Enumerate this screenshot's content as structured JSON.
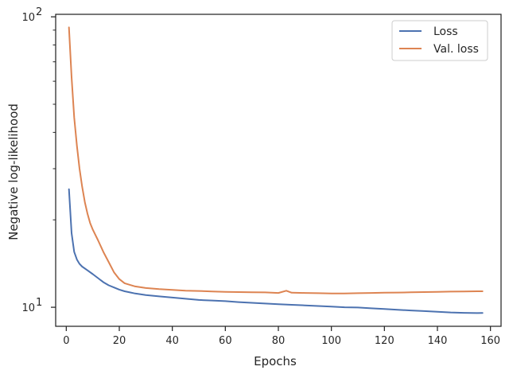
{
  "chart_data": {
    "type": "line",
    "xlabel": "Epochs",
    "ylabel": "Negative log-likelihood",
    "xlim": [
      -4,
      164
    ],
    "ylim": [
      8.6,
      102
    ],
    "yscale": "log",
    "x_ticks": [
      0,
      20,
      40,
      60,
      80,
      100,
      120,
      140,
      160
    ],
    "y_ticks": [
      {
        "value": 10,
        "label": "10",
        "exp": "1"
      },
      {
        "value": 100,
        "label": "10",
        "exp": "2"
      }
    ],
    "y_minor_ticks": [
      20,
      30,
      40,
      50,
      60,
      70,
      80,
      90
    ],
    "grid": false,
    "legend": "top-right",
    "series": [
      {
        "name": "Loss",
        "color": "#4c72b0",
        "points": [
          [
            1,
            25.5
          ],
          [
            2,
            18
          ],
          [
            3,
            15.5
          ],
          [
            4,
            14.6
          ],
          [
            5,
            14.1
          ],
          [
            6,
            13.8
          ],
          [
            8,
            13.4
          ],
          [
            10,
            13
          ],
          [
            12,
            12.6
          ],
          [
            14,
            12.2
          ],
          [
            16,
            11.9
          ],
          [
            18,
            11.7
          ],
          [
            20,
            11.5
          ],
          [
            22,
            11.35
          ],
          [
            24,
            11.25
          ],
          [
            26,
            11.15
          ],
          [
            28,
            11.08
          ],
          [
            30,
            11.02
          ],
          [
            35,
            10.9
          ],
          [
            40,
            10.8
          ],
          [
            45,
            10.7
          ],
          [
            50,
            10.6
          ],
          [
            55,
            10.55
          ],
          [
            60,
            10.5
          ],
          [
            65,
            10.42
          ],
          [
            70,
            10.36
          ],
          [
            75,
            10.3
          ],
          [
            80,
            10.25
          ],
          [
            85,
            10.2
          ],
          [
            90,
            10.15
          ],
          [
            95,
            10.1
          ],
          [
            100,
            10.05
          ],
          [
            105,
            10
          ],
          [
            110,
            9.98
          ],
          [
            115,
            9.92
          ],
          [
            120,
            9.86
          ],
          [
            125,
            9.8
          ],
          [
            130,
            9.75
          ],
          [
            135,
            9.7
          ],
          [
            140,
            9.65
          ],
          [
            145,
            9.6
          ],
          [
            150,
            9.57
          ],
          [
            155,
            9.55
          ],
          [
            157,
            9.56
          ]
        ]
      },
      {
        "name": "Val. loss",
        "color": "#dd8452",
        "points": [
          [
            1,
            92
          ],
          [
            2,
            62
          ],
          [
            3,
            45
          ],
          [
            4,
            36
          ],
          [
            5,
            30
          ],
          [
            6,
            26
          ],
          [
            7,
            23
          ],
          [
            8,
            21
          ],
          [
            9,
            19.5
          ],
          [
            10,
            18.5
          ],
          [
            12,
            17
          ],
          [
            14,
            15.5
          ],
          [
            16,
            14.3
          ],
          [
            18,
            13.2
          ],
          [
            20,
            12.5
          ],
          [
            22,
            12.1
          ],
          [
            24,
            11.95
          ],
          [
            26,
            11.8
          ],
          [
            28,
            11.72
          ],
          [
            30,
            11.65
          ],
          [
            35,
            11.55
          ],
          [
            40,
            11.48
          ],
          [
            45,
            11.4
          ],
          [
            50,
            11.38
          ],
          [
            55,
            11.33
          ],
          [
            60,
            11.3
          ],
          [
            65,
            11.28
          ],
          [
            70,
            11.26
          ],
          [
            75,
            11.25
          ],
          [
            80,
            11.2
          ],
          [
            83,
            11.4
          ],
          [
            85,
            11.22
          ],
          [
            90,
            11.2
          ],
          [
            95,
            11.18
          ],
          [
            100,
            11.15
          ],
          [
            105,
            11.15
          ],
          [
            110,
            11.18
          ],
          [
            115,
            11.2
          ],
          [
            120,
            11.22
          ],
          [
            125,
            11.24
          ],
          [
            130,
            11.26
          ],
          [
            135,
            11.28
          ],
          [
            140,
            11.3
          ],
          [
            145,
            11.32
          ],
          [
            150,
            11.33
          ],
          [
            155,
            11.35
          ],
          [
            157,
            11.35
          ]
        ]
      }
    ]
  }
}
